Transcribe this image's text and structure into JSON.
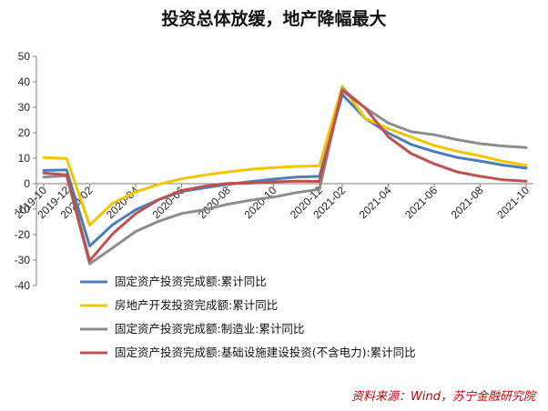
{
  "chart_data": {
    "type": "line",
    "title": "投资总体放缓，地产降幅最大",
    "ylim": [
      -40,
      50
    ],
    "yticks": [
      -40,
      -30,
      -20,
      -10,
      0,
      10,
      20,
      30,
      40,
      50
    ],
    "x": [
      "2019-10",
      "2019-12",
      "2020-02",
      "2020-03",
      "2020-04",
      "2020-05",
      "2020-06",
      "2020-07",
      "2020-08",
      "2020-09",
      "2020-10",
      "2020-11",
      "2020-12",
      "2021-02",
      "2021-03",
      "2021-04",
      "2021-05",
      "2021-06",
      "2021-07",
      "2021-08",
      "2021-09",
      "2021-10"
    ],
    "xtick_labels": [
      "2019-10",
      "2019-12",
      "2020-02",
      "2020-04",
      "2020-06",
      "2020-08",
      "2020-10",
      "2020-12",
      "2021-02",
      "2021-04",
      "2021-06",
      "2021-08",
      "2021-10"
    ],
    "series": [
      {
        "name": "固定资产投资完成额:累计同比",
        "color": "#4a7ebb",
        "values": [
          5.2,
          5.4,
          -24.5,
          -16.1,
          -10.3,
          -6.3,
          -3.1,
          -1.6,
          -0.3,
          0.8,
          1.8,
          2.6,
          2.9,
          35.0,
          25.6,
          19.9,
          15.4,
          12.6,
          10.3,
          8.9,
          7.3,
          6.1
        ]
      },
      {
        "name": "房地产开发投资完成额:累计同比",
        "color": "#f5c400",
        "values": [
          10.3,
          9.9,
          -16.3,
          -7.7,
          -3.3,
          -0.3,
          1.9,
          3.4,
          4.6,
          5.6,
          6.3,
          6.8,
          7.0,
          38.3,
          25.6,
          21.6,
          18.3,
          15.0,
          12.7,
          10.9,
          8.8,
          7.2
        ]
      },
      {
        "name": "固定资产投资完成额:制造业:累计同比",
        "color": "#8c8c8c",
        "values": [
          2.6,
          3.1,
          -31.5,
          -25.2,
          -18.8,
          -14.8,
          -11.7,
          -10.2,
          -8.1,
          -6.5,
          -5.3,
          -3.5,
          -2.2,
          37.3,
          29.8,
          23.8,
          20.4,
          19.2,
          17.3,
          15.7,
          14.8,
          14.2
        ]
      },
      {
        "name": "固定资产投资完成额:基础设施建设投资(不含电力):累计同比",
        "color": "#c0504d",
        "values": [
          4.2,
          3.5,
          -30.3,
          -19.7,
          -11.8,
          -6.3,
          -2.7,
          -1.0,
          0.1,
          0.2,
          0.7,
          1.0,
          0.9,
          36.6,
          29.7,
          18.4,
          11.8,
          7.8,
          4.6,
          2.9,
          1.5,
          1.0
        ]
      }
    ],
    "legend_position": "bottom-left",
    "grid": false
  },
  "source_text": "资料来源：Wind，苏宁金融研究院"
}
